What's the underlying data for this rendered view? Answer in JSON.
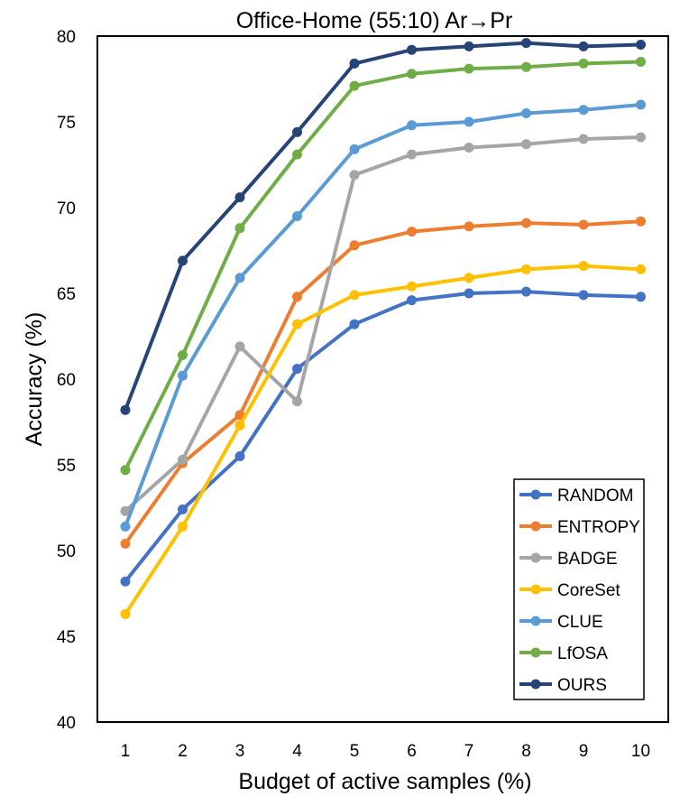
{
  "chart_data": {
    "type": "line",
    "title": "Office-Home (55:10) Ar→Pr",
    "xlabel": "Budget of active samples (%)",
    "ylabel": "Accuracy (%)",
    "x": [
      1,
      2,
      3,
      4,
      5,
      6,
      7,
      8,
      9,
      10
    ],
    "ylim": [
      40,
      80
    ],
    "yticks": [
      40,
      45,
      50,
      55,
      60,
      65,
      70,
      75,
      80
    ],
    "grid": false,
    "legend_position": "bottom-right",
    "series": [
      {
        "name": "RANDOM",
        "color": "#4472C4",
        "values": [
          48.2,
          52.4,
          55.5,
          60.6,
          63.2,
          64.6,
          65.0,
          65.1,
          64.9,
          64.8
        ]
      },
      {
        "name": "ENTROPY",
        "color": "#ED7D31",
        "values": [
          50.4,
          55.1,
          57.9,
          64.8,
          67.8,
          68.6,
          68.9,
          69.1,
          69.0,
          69.2
        ]
      },
      {
        "name": "BADGE",
        "color": "#A5A5A5",
        "values": [
          52.3,
          55.3,
          61.9,
          58.7,
          71.9,
          73.1,
          73.5,
          73.7,
          74.0,
          74.1
        ]
      },
      {
        "name": "CoreSet",
        "color": "#FFC000",
        "values": [
          46.3,
          51.4,
          57.3,
          63.2,
          64.9,
          65.4,
          65.9,
          66.4,
          66.6,
          66.4
        ]
      },
      {
        "name": "CLUE",
        "color": "#5B9BD5",
        "values": [
          51.4,
          60.2,
          65.9,
          69.5,
          73.4,
          74.8,
          75.0,
          75.5,
          75.7,
          76.0
        ]
      },
      {
        "name": "LfOSA",
        "color": "#70AD47",
        "values": [
          54.7,
          61.4,
          68.8,
          73.1,
          77.1,
          77.8,
          78.1,
          78.2,
          78.4,
          78.5
        ]
      },
      {
        "name": "OURS",
        "color": "#264478",
        "values": [
          58.2,
          66.9,
          70.6,
          74.4,
          78.4,
          79.2,
          79.4,
          79.6,
          79.4,
          79.5
        ]
      }
    ]
  }
}
